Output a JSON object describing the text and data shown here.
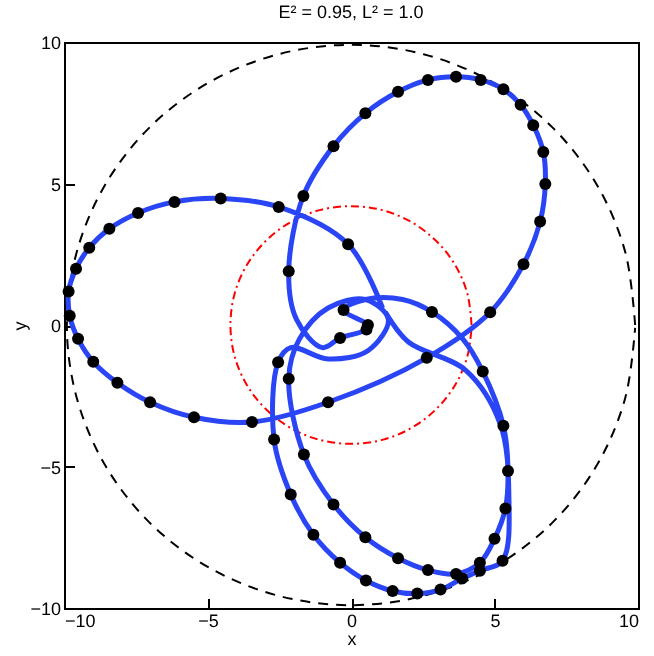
{
  "chart_data": {
    "type": "line",
    "title": "E² = 0.95, L² = 1.0",
    "xlabel": "x",
    "ylabel": "y",
    "xlim": [
      -10,
      10
    ],
    "ylim": [
      -10,
      10
    ],
    "xticks": [
      -10,
      -5,
      0,
      5,
      10
    ],
    "yticks": [
      -10,
      -5,
      0,
      5,
      10
    ],
    "grid": false,
    "series": [
      {
        "color": "#000000",
        "line_style": "dashed",
        "x": [
          9.9,
          9.56,
          8.57,
          7.0,
          4.95,
          2.56,
          0,
          -2.56,
          -4.95,
          -7.0,
          -8.57,
          -9.56,
          -9.9,
          -9.56,
          -8.57,
          -7.0,
          -4.95,
          -2.56,
          0,
          2.56,
          4.95,
          7.0,
          8.57,
          9.56,
          9.9
        ],
        "values": [
          0,
          2.56,
          4.95,
          7.0,
          8.57,
          9.56,
          9.9,
          9.56,
          8.57,
          7.0,
          4.95,
          2.56,
          0,
          -2.56,
          -4.95,
          -7.0,
          -8.57,
          -9.56,
          -9.9,
          -9.56,
          -8.57,
          -7.0,
          -4.95,
          -2.56,
          -0.1
        ]
      },
      {
        "color": "#ff0000",
        "line_style": "dotted",
        "x": [
          4.2,
          4.06,
          3.64,
          2.97,
          2.1,
          1.09,
          0,
          -1.09,
          -2.1,
          -2.97,
          -3.64,
          -4.06,
          -4.2,
          -4.06,
          -3.64,
          -2.97,
          -2.1,
          -1.09,
          0,
          1.09,
          2.1,
          2.97,
          3.64,
          4.06,
          4.2
        ],
        "values": [
          0,
          1.09,
          2.1,
          2.97,
          3.64,
          4.06,
          4.2,
          4.06,
          3.64,
          2.97,
          2.1,
          1.09,
          0,
          -1.09,
          -2.1,
          -2.97,
          -3.64,
          -4.06,
          -4.2,
          -4.06,
          -3.64,
          -2.97,
          -2.1,
          -1.09,
          -0.1
        ]
      },
      {
        "color": "#2a45f5",
        "line_style": "solid",
        "x": [
          1.1,
          -0.1,
          -2.52,
          -4.54,
          -6.15,
          -7.42,
          -8.42,
          -9.12,
          -9.58,
          -9.84,
          -9.8,
          -9.51,
          -8.98,
          -8.14,
          -7.0,
          -5.47,
          -3.45,
          -0.8,
          2.64,
          4.85,
          6.01,
          6.59,
          6.77,
          6.7,
          6.35,
          5.91,
          5.31,
          4.52,
          3.66,
          2.68,
          1.64,
          0.5,
          -0.61,
          -1.66,
          -2.17,
          -1.9,
          -1.0,
          -0.38,
          0.54,
          0.59,
          -0.26,
          0.5,
          1.8,
          2.82,
          3.9,
          4.59,
          5.31,
          5.47,
          5.38,
          5.0,
          4.49,
          3.66,
          2.68,
          1.64,
          0.5,
          -0.61,
          -1.64,
          -2.17,
          -1.8,
          -0.8,
          0.5,
          1.3,
          0.6,
          -0.8,
          -2.1,
          -2.54,
          -2.68,
          -2.1,
          -1.31,
          -0.38,
          0.52,
          1.45,
          2.31,
          3.12,
          3.87,
          4.49,
          5.28,
          5.5,
          5.2,
          4.0,
          2.0,
          1.2
        ],
        "values": [
          0.6,
          2.85,
          4.17,
          4.47,
          4.35,
          3.96,
          3.4,
          2.73,
          1.99,
          1.18,
          0.33,
          -0.49,
          -1.3,
          -2.04,
          -2.73,
          -3.26,
          -3.43,
          -2.73,
          -1.16,
          0.45,
          2.15,
          3.66,
          4.98,
          6.11,
          7.06,
          7.78,
          8.33,
          8.66,
          8.77,
          8.66,
          8.24,
          7.48,
          6.32,
          4.56,
          1.9,
          0.2,
          -0.8,
          -0.46,
          -0.16,
          0.0,
          0.53,
          0.9,
          0.9,
          0.46,
          -0.5,
          -1.64,
          -3.56,
          -5.16,
          -6.48,
          -7.55,
          -8.4,
          -8.8,
          -8.66,
          -8.24,
          -7.5,
          -6.34,
          -4.58,
          -1.9,
          -0.5,
          0.6,
          0.9,
          0.2,
          -0.9,
          -1.2,
          -0.8,
          -1.32,
          -4.05,
          -5.99,
          -7.41,
          -8.4,
          -9.03,
          -9.4,
          -9.49,
          -9.35,
          -8.96,
          -8.68,
          -8.33,
          -6.0,
          -3.5,
          -1.6,
          -0.6,
          0.45
        ]
      },
      {
        "type": "scatter",
        "color": "#000000",
        "marker": "circle",
        "x": [
          -0.1,
          -2.52,
          -4.54,
          -6.15,
          -7.42,
          -8.42,
          -9.12,
          -9.58,
          -9.84,
          -9.8,
          -9.51,
          -8.98,
          -8.14,
          -7.0,
          -5.47,
          -3.45,
          -0.8,
          2.64,
          4.85,
          6.01,
          6.59,
          6.77,
          6.7,
          6.35,
          5.91,
          5.31,
          4.52,
          3.66,
          2.68,
          1.64,
          0.5,
          -0.61,
          -1.66,
          -2.17,
          -0.38,
          0.54,
          0.59,
          -0.26,
          2.82,
          4.59,
          5.31,
          5.47,
          5.38,
          5.0,
          4.49,
          3.66,
          2.68,
          1.64,
          0.5,
          -0.61,
          -1.64,
          -2.17,
          -2.54,
          -2.68,
          -2.1,
          -1.31,
          -0.38,
          0.52,
          1.45,
          2.31,
          3.12,
          3.87,
          4.49,
          5.28
        ],
        "values": [
          2.85,
          4.17,
          4.47,
          4.35,
          3.96,
          3.4,
          2.73,
          1.99,
          1.18,
          0.33,
          -0.49,
          -1.3,
          -2.04,
          -2.73,
          -3.26,
          -3.43,
          -2.73,
          -1.16,
          0.45,
          2.15,
          3.66,
          4.98,
          6.11,
          7.06,
          7.78,
          8.33,
          8.66,
          8.77,
          8.66,
          8.24,
          7.48,
          6.32,
          4.56,
          1.9,
          -0.46,
          -0.16,
          0.0,
          0.53,
          0.46,
          -1.64,
          -3.56,
          -5.16,
          -6.48,
          -7.55,
          -8.4,
          -8.8,
          -8.66,
          -8.24,
          -7.5,
          -6.34,
          -4.58,
          -1.9,
          -1.32,
          -4.05,
          -5.99,
          -7.41,
          -8.4,
          -9.03,
          -9.4,
          -9.49,
          -9.35,
          -8.96,
          -8.68,
          -8.33
        ]
      }
    ]
  }
}
